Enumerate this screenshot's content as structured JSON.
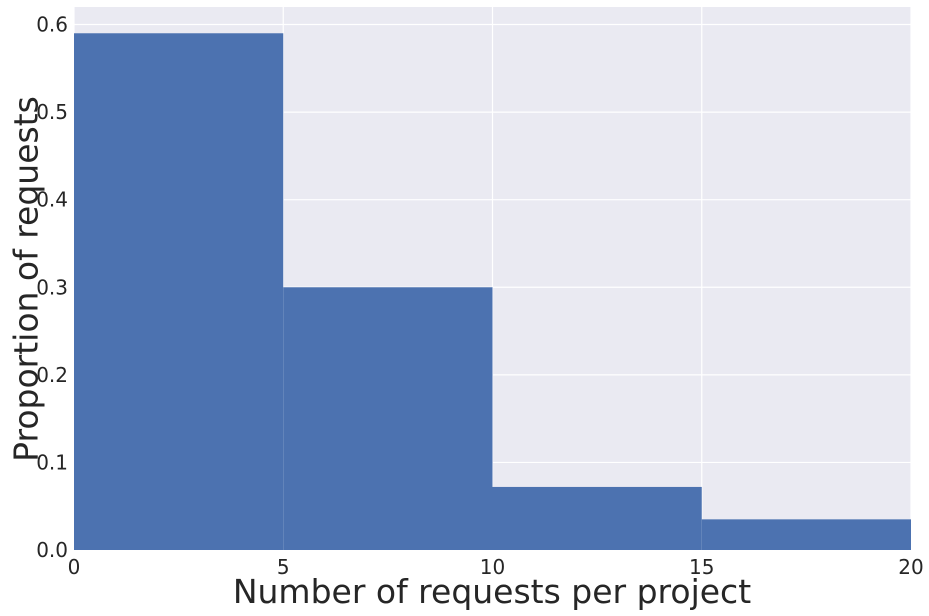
{
  "chart_data": {
    "type": "bar",
    "title": "",
    "xlabel": "Number of requests per project",
    "ylabel": "Proportion of requests",
    "bins": [
      {
        "x0": 0,
        "x1": 5,
        "value": 0.59
      },
      {
        "x0": 5,
        "x1": 10,
        "value": 0.3
      },
      {
        "x0": 10,
        "x1": 15,
        "value": 0.072
      },
      {
        "x0": 15,
        "x1": 20,
        "value": 0.035
      }
    ],
    "xlim": [
      0,
      20
    ],
    "ylim": [
      0,
      0.62
    ],
    "xticks": [
      "0",
      "5",
      "10",
      "15",
      "20"
    ],
    "yticks": [
      "0.0",
      "0.1",
      "0.2",
      "0.3",
      "0.4",
      "0.5",
      "0.6"
    ],
    "grid": true,
    "colors": {
      "bar": "#4c72b0",
      "background": "#eaeaf2",
      "grid": "#ffffff"
    }
  }
}
